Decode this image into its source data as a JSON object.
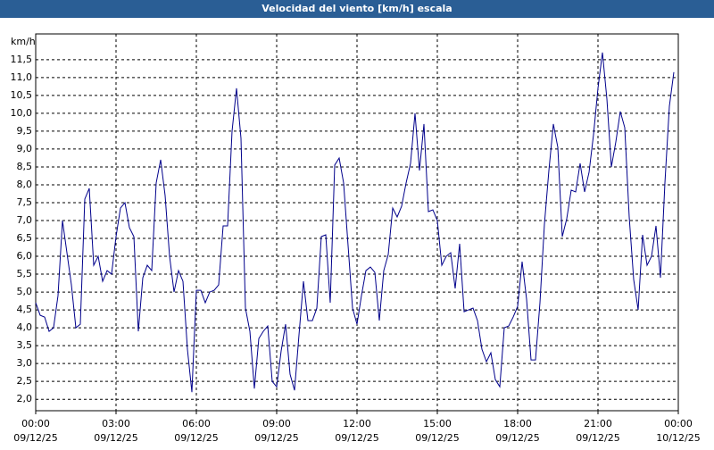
{
  "chart_data": {
    "type": "line",
    "title": "Velocidad del viento [km/h] escala",
    "y_label": "km/h",
    "x": [
      0,
      10,
      20,
      30,
      40,
      50,
      60,
      70,
      80,
      90,
      100,
      110,
      120,
      130,
      140,
      150,
      160,
      170,
      180,
      190,
      200,
      210,
      220,
      230,
      240,
      250,
      260,
      270,
      280,
      290,
      300,
      310,
      320,
      330,
      340,
      350,
      360,
      370,
      380,
      390,
      400,
      410,
      420,
      430,
      440,
      450,
      460,
      470,
      480,
      490,
      500,
      510,
      520,
      530,
      540,
      550,
      560,
      570,
      580,
      590,
      600,
      610,
      620,
      630,
      640,
      650,
      660,
      670,
      680,
      690,
      700,
      710,
      720,
      730,
      740,
      750,
      760,
      770,
      780,
      790,
      800,
      810,
      820,
      830,
      840,
      850,
      860,
      870,
      880,
      890,
      900,
      910,
      920,
      930,
      940,
      950,
      960,
      970,
      980,
      990,
      1000,
      1010,
      1020,
      1030,
      1040,
      1050,
      1060,
      1070,
      1080,
      1090,
      1100,
      1110,
      1120,
      1130,
      1140,
      1150,
      1160,
      1170,
      1180,
      1190,
      1200,
      1210,
      1220,
      1230,
      1240,
      1250,
      1260,
      1270,
      1280,
      1290,
      1300,
      1310,
      1320,
      1330,
      1340,
      1350,
      1360,
      1370,
      1380,
      1390,
      1400,
      1410,
      1420,
      1430
    ],
    "series": [
      {
        "name": "Velocidad del viento",
        "color": "#00008b",
        "values": [
          4.7,
          4.35,
          4.3,
          3.9,
          4.0,
          4.9,
          7.0,
          6.1,
          5.2,
          4.0,
          4.1,
          7.6,
          7.9,
          5.75,
          6.0,
          5.3,
          5.6,
          5.5,
          6.55,
          7.35,
          7.5,
          6.8,
          6.55,
          3.9,
          5.4,
          5.75,
          5.6,
          8.05,
          8.7,
          7.7,
          6.0,
          5.0,
          5.6,
          5.3,
          3.4,
          2.2,
          5.05,
          5.05,
          4.7,
          5.0,
          5.05,
          5.2,
          6.85,
          6.85,
          9.5,
          10.7,
          9.3,
          4.55,
          3.9,
          2.3,
          3.7,
          3.9,
          4.05,
          2.5,
          2.35,
          3.35,
          4.1,
          2.7,
          2.25,
          3.8,
          5.3,
          4.2,
          4.2,
          4.55,
          6.55,
          6.6,
          4.7,
          8.55,
          8.75,
          8.05,
          6.3,
          4.55,
          4.1,
          4.9,
          5.6,
          5.7,
          5.55,
          4.2,
          5.6,
          6.05,
          7.35,
          7.1,
          7.4,
          8.05,
          8.6,
          10.0,
          8.4,
          9.7,
          7.25,
          7.3,
          7.0,
          5.75,
          6.0,
          6.1,
          5.1,
          6.35,
          4.45,
          4.5,
          4.55,
          4.2,
          3.4,
          3.05,
          3.3,
          2.55,
          2.35,
          4.0,
          4.05,
          4.3,
          4.6,
          5.85,
          4.8,
          3.1,
          3.1,
          4.7,
          6.9,
          8.4,
          9.7,
          9.05,
          6.55,
          7.05,
          7.85,
          7.8,
          8.6,
          7.8,
          8.35,
          9.4,
          10.7,
          11.7,
          10.4,
          8.5,
          9.2,
          10.05,
          9.6,
          7.1,
          5.35,
          4.5,
          6.6,
          5.75,
          6.0,
          6.85,
          5.4,
          8.05,
          10.2,
          11.15
        ]
      }
    ],
    "xlim": [
      0,
      1440
    ],
    "xticks": [
      {
        "value": 0,
        "label": "00:00"
      },
      {
        "value": 180,
        "label": "03:00"
      },
      {
        "value": 360,
        "label": "06:00"
      },
      {
        "value": 540,
        "label": "09:00"
      },
      {
        "value": 720,
        "label": "12:00"
      },
      {
        "value": 900,
        "label": "15:00"
      },
      {
        "value": 1080,
        "label": "18:00"
      },
      {
        "value": 1260,
        "label": "21:00"
      },
      {
        "value": 1440,
        "label": "00:00"
      }
    ],
    "xtick_dates": [
      "09/12/25",
      "09/12/25",
      "09/12/25",
      "09/12/25",
      "09/12/25",
      "09/12/25",
      "09/12/25",
      "09/12/25",
      "10/12/25"
    ],
    "ylim": [
      1.68,
      12.22
    ],
    "yticks": [
      {
        "value": 2,
        "label": "2,0"
      },
      {
        "value": 2.5,
        "label": "2,5"
      },
      {
        "value": 3,
        "label": "3,0"
      },
      {
        "value": 3.5,
        "label": "3,5"
      },
      {
        "value": 4,
        "label": "4,0"
      },
      {
        "value": 4.5,
        "label": "4,5"
      },
      {
        "value": 5,
        "label": "5,0"
      },
      {
        "value": 5.5,
        "label": "5,5"
      },
      {
        "value": 6,
        "label": "6,0"
      },
      {
        "value": 6.5,
        "label": "6,5"
      },
      {
        "value": 7,
        "label": "7,0"
      },
      {
        "value": 7.5,
        "label": "7,5"
      },
      {
        "value": 8,
        "label": "8,0"
      },
      {
        "value": 8.5,
        "label": "8,5"
      },
      {
        "value": 9,
        "label": "9,0"
      },
      {
        "value": 9.5,
        "label": "9,5"
      },
      {
        "value": 10,
        "label": "10,0"
      },
      {
        "value": 10.5,
        "label": "10,5"
      },
      {
        "value": 11,
        "label": "11,0"
      },
      {
        "value": 11.5,
        "label": "11,5"
      }
    ],
    "grid": true
  }
}
